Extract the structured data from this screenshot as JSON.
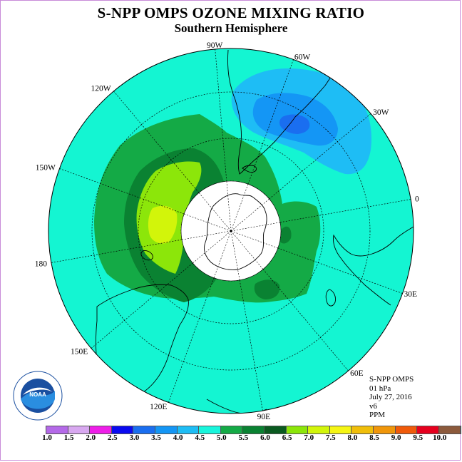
{
  "title": "S-NPP OMPS OZONE MIXING RATIO",
  "subtitle": "Southern Hemisphere",
  "info": {
    "instrument": "S-NPP OMPS",
    "level": "01 hPa",
    "date": "July 27, 2016",
    "version": "v6",
    "units": "PPM"
  },
  "longitude_labels": [
    "90W",
    "60W",
    "30W",
    "0",
    "30E",
    "60E",
    "90E",
    "120E",
    "150E",
    "180",
    "150W",
    "120W"
  ],
  "logo_text": "NOAA",
  "colorbar": {
    "labels": [
      "1.0",
      "1.5",
      "2.0",
      "2.5",
      "3.0",
      "3.5",
      "4.0",
      "4.5",
      "5.0",
      "5.5",
      "6.0",
      "6.5",
      "7.0",
      "7.5",
      "8.0",
      "8.5",
      "9.0",
      "9.5",
      "10.0"
    ],
    "colors": [
      "#b469e8",
      "#d8a8f0",
      "#ee1ee8",
      "#0a0af0",
      "#1a6ef0",
      "#1496f5",
      "#1ebdf5",
      "#18f5dc",
      "#14aa46",
      "#0a8232",
      "#0a5a20",
      "#8ce60a",
      "#d2f50a",
      "#f5f514",
      "#f0be0a",
      "#f0960a",
      "#f05a0a",
      "#e6001e",
      "#8c5a3c"
    ]
  },
  "map_colors": {
    "background": "#14f5d2",
    "green_5_5": "#14aa46",
    "green_6_0": "#0a8232",
    "green_6_5": "#0a5a20",
    "lime_7_0": "#8ce60a",
    "yellow_7_5": "#d2f50a",
    "blue_4_5": "#1ebdf5",
    "blue_4_0": "#1496f5",
    "blue_3_5": "#1a6ef0"
  }
}
